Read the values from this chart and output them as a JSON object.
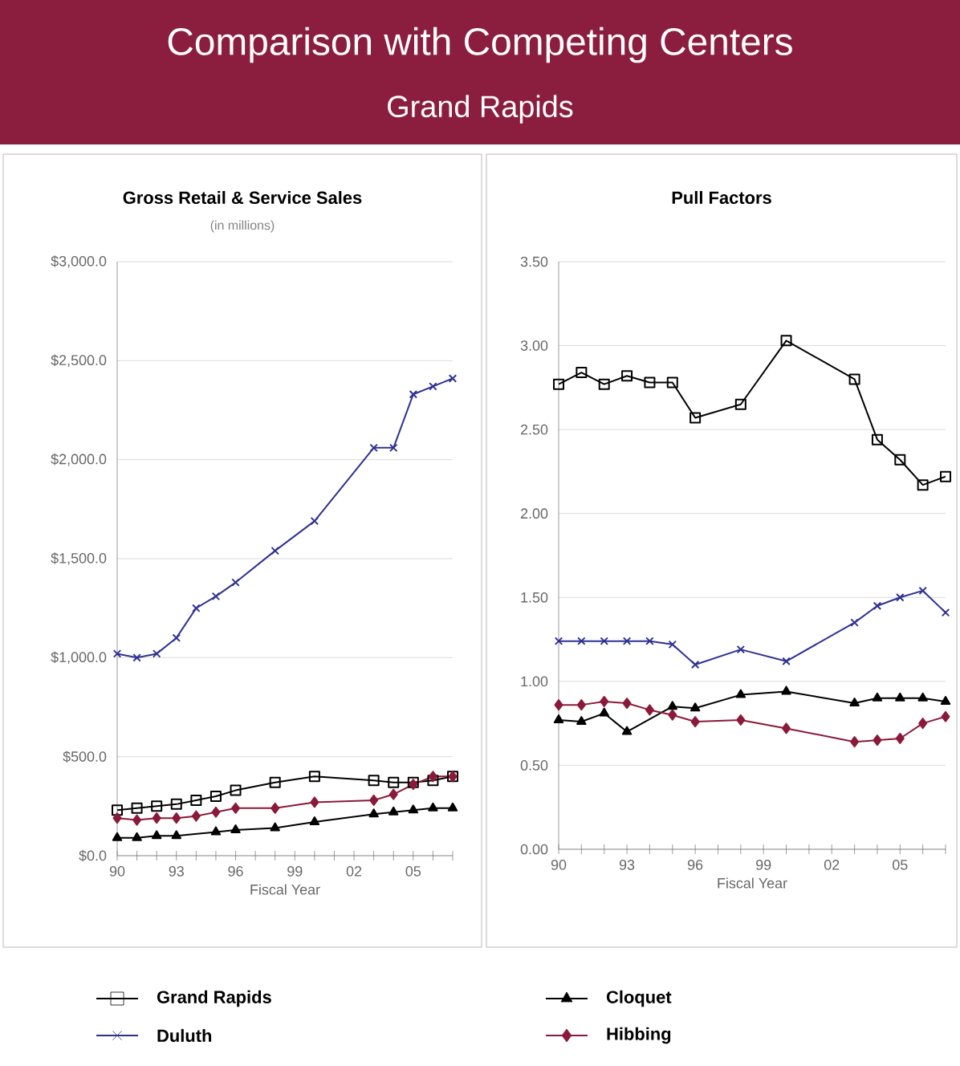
{
  "chart_data": [
    {
      "type": "other",
      "title": "Comparison with Competing Centers",
      "subtitle": "Grand Rapids"
    },
    {
      "type": "line",
      "title": "Gross Retail & Service Sales",
      "subtitle": "(in millions)",
      "xlabel": "Fiscal Year",
      "grid": "y",
      "legend": "bottom",
      "xlim": [
        1990,
        2007
      ],
      "xticks": [
        {
          "value": 1990,
          "label": "90"
        },
        {
          "value": 1991,
          "label": null
        },
        {
          "value": 1992,
          "label": null
        },
        {
          "value": 1993,
          "label": "93"
        },
        {
          "value": 1994,
          "label": null
        },
        {
          "value": 1995,
          "label": null
        },
        {
          "value": 1996,
          "label": "96"
        },
        {
          "value": 1997,
          "label": null
        },
        {
          "value": 1998,
          "label": null
        },
        {
          "value": 1999,
          "label": "99"
        },
        {
          "value": 2000,
          "label": null
        },
        {
          "value": 2001,
          "label": null
        },
        {
          "value": 2002,
          "label": "02"
        },
        {
          "value": 2003,
          "label": null
        },
        {
          "value": 2004,
          "label": null
        },
        {
          "value": 2005,
          "label": "05"
        },
        {
          "value": 2006,
          "label": null
        },
        {
          "value": 2007,
          "label": null
        }
      ],
      "ylim": [
        0,
        3000
      ],
      "yticks": [
        {
          "value": 0,
          "label": "$0.0"
        },
        {
          "value": 500,
          "label": "$500.0"
        },
        {
          "value": 1000,
          "label": "$1,000.0"
        },
        {
          "value": 1500,
          "label": "$1,500.0"
        },
        {
          "value": 2000,
          "label": "$2,000.0"
        },
        {
          "value": 2500,
          "label": "$2,500.0"
        },
        {
          "value": 3000,
          "label": "$3,000.0"
        }
      ],
      "series": [
        {
          "name": "Grand Rapids",
          "color": "#000000",
          "marker": "square",
          "x": [
            1990,
            1991,
            1992,
            1993,
            1994,
            1995,
            1996,
            1998,
            2000,
            2003,
            2004,
            2005,
            2006,
            2007
          ],
          "values": [
            230,
            240,
            250,
            260,
            280,
            300,
            330,
            370,
            400,
            380,
            370,
            370,
            380,
            400
          ]
        },
        {
          "name": "Duluth",
          "color": "#2e3192",
          "marker": "cross",
          "x": [
            1990,
            1991,
            1992,
            1993,
            1994,
            1995,
            1996,
            1998,
            2000,
            2003,
            2004,
            2005,
            2006,
            2007
          ],
          "values": [
            1020,
            1000,
            1020,
            1100,
            1250,
            1310,
            1380,
            1540,
            1690,
            2060,
            2060,
            2330,
            2370,
            2410
          ]
        },
        {
          "name": "Cloquet",
          "color": "#000000",
          "marker": "triangle",
          "x": [
            1990,
            1991,
            1992,
            1993,
            1995,
            1996,
            1998,
            2000,
            2003,
            2004,
            2005,
            2006,
            2007
          ],
          "values": [
            90,
            90,
            100,
            100,
            120,
            130,
            140,
            170,
            210,
            220,
            230,
            240,
            240
          ]
        },
        {
          "name": "Hibbing",
          "color": "#8b1a3a",
          "marker": "diamond",
          "x": [
            1990,
            1991,
            1992,
            1993,
            1994,
            1995,
            1996,
            1998,
            2000,
            2003,
            2004,
            2005,
            2006,
            2007
          ],
          "values": [
            190,
            180,
            190,
            190,
            200,
            220,
            240,
            240,
            270,
            280,
            310,
            360,
            400,
            400
          ]
        }
      ]
    },
    {
      "type": "line",
      "title": "Pull Factors",
      "xlabel": "Fiscal Year",
      "grid": "y",
      "xlim": [
        1990,
        2007
      ],
      "xticks": [
        {
          "value": 1990,
          "label": "90"
        },
        {
          "value": 1991,
          "label": null
        },
        {
          "value": 1992,
          "label": null
        },
        {
          "value": 1993,
          "label": "93"
        },
        {
          "value": 1994,
          "label": null
        },
        {
          "value": 1995,
          "label": null
        },
        {
          "value": 1996,
          "label": "96"
        },
        {
          "value": 1997,
          "label": null
        },
        {
          "value": 1998,
          "label": null
        },
        {
          "value": 1999,
          "label": "99"
        },
        {
          "value": 2000,
          "label": null
        },
        {
          "value": 2001,
          "label": null
        },
        {
          "value": 2002,
          "label": "02"
        },
        {
          "value": 2003,
          "label": null
        },
        {
          "value": 2004,
          "label": null
        },
        {
          "value": 2005,
          "label": "05"
        },
        {
          "value": 2006,
          "label": null
        },
        {
          "value": 2007,
          "label": null
        }
      ],
      "ylim": [
        0,
        3.5
      ],
      "yticks": [
        {
          "value": 0,
          "label": "0.00"
        },
        {
          "value": 0.5,
          "label": "0.50"
        },
        {
          "value": 1,
          "label": "1.00"
        },
        {
          "value": 1.5,
          "label": "1.50"
        },
        {
          "value": 2,
          "label": "2.00"
        },
        {
          "value": 2.5,
          "label": "2.50"
        },
        {
          "value": 3,
          "label": "3.00"
        },
        {
          "value": 3.5,
          "label": "3.50"
        }
      ],
      "series": [
        {
          "color": "#000000",
          "marker": "square",
          "x": [
            1990,
            1991,
            1992,
            1993,
            1994,
            1995,
            1996,
            1998,
            2000,
            2003,
            2004,
            2005,
            2006,
            2007
          ],
          "values": [
            2.77,
            2.84,
            2.77,
            2.82,
            2.78,
            2.78,
            2.57,
            2.65,
            3.03,
            2.8,
            2.44,
            2.32,
            2.17,
            2.22
          ]
        },
        {
          "color": "#2e3192",
          "marker": "cross",
          "x": [
            1990,
            1991,
            1992,
            1993,
            1994,
            1995,
            1996,
            1998,
            2000,
            2003,
            2004,
            2005,
            2006,
            2007
          ],
          "values": [
            1.24,
            1.24,
            1.24,
            1.24,
            1.24,
            1.22,
            1.1,
            1.19,
            1.12,
            1.35,
            1.45,
            1.5,
            1.54,
            1.41
          ]
        },
        {
          "color": "#000000",
          "marker": "triangle",
          "x": [
            1990,
            1991,
            1992,
            1993,
            1995,
            1996,
            1998,
            2000,
            2003,
            2004,
            2005,
            2006,
            2007
          ],
          "values": [
            0.77,
            0.76,
            0.81,
            0.7,
            0.85,
            0.84,
            0.92,
            0.94,
            0.87,
            0.9,
            0.9,
            0.9,
            0.88
          ]
        },
        {
          "color": "#8b1a3a",
          "marker": "diamond",
          "x": [
            1990,
            1991,
            1992,
            1993,
            1994,
            1995,
            1996,
            1998,
            2000,
            2003,
            2004,
            2005,
            2006,
            2007
          ],
          "values": [
            0.86,
            0.86,
            0.88,
            0.87,
            0.83,
            0.8,
            0.76,
            0.77,
            0.72,
            0.64,
            0.65,
            0.66,
            0.75,
            0.79
          ]
        }
      ]
    }
  ]
}
